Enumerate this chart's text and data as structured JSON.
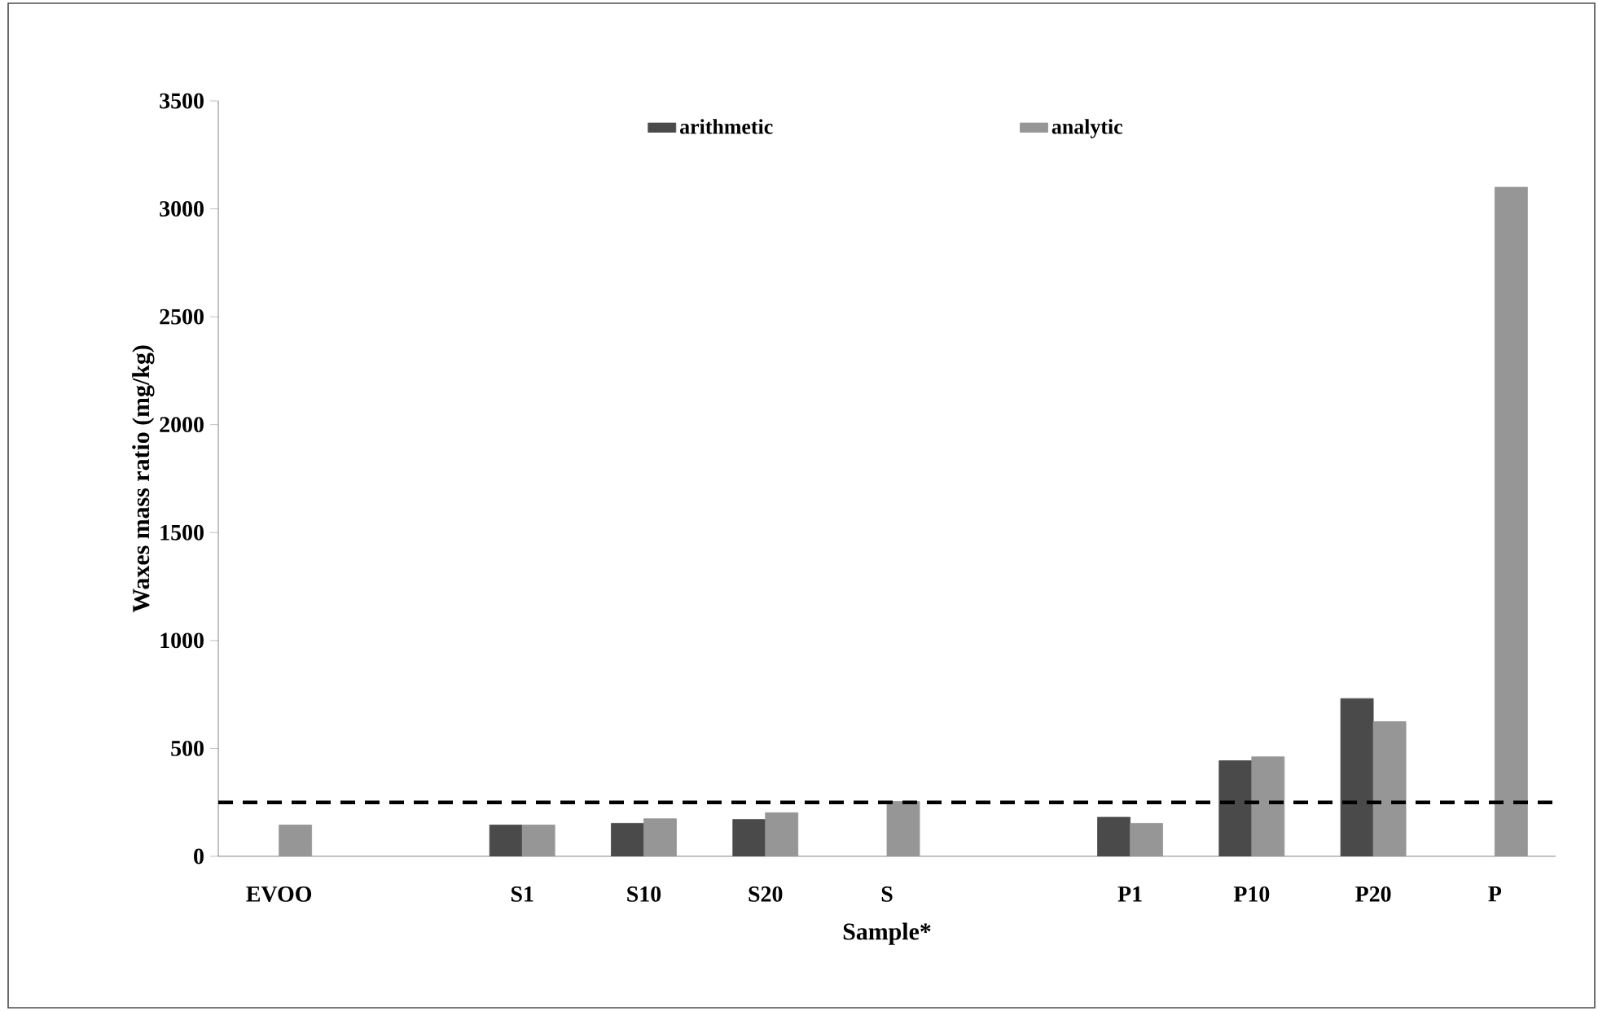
{
  "chart_data": {
    "type": "bar",
    "xlabel": "Sample*",
    "ylabel": "Waxes mass ratio (mg/kg)",
    "categories": [
      "EVOO",
      null,
      "S1",
      "S10",
      "S20",
      "S",
      null,
      "P1",
      "P10",
      "P20",
      "P"
    ],
    "series": [
      {
        "name": "arithmetic",
        "color": "#4a4a4a",
        "values": [
          null,
          null,
          145,
          153,
          171,
          null,
          null,
          181,
          443,
          731,
          null
        ]
      },
      {
        "name": "analytic",
        "color": "#969696",
        "values": [
          145,
          null,
          145,
          174,
          202,
          254,
          null,
          153,
          461,
          624,
          3100
        ]
      }
    ],
    "ylim": [
      0,
      3500
    ],
    "yticks": [
      0,
      500,
      1000,
      1500,
      2000,
      2500,
      3000,
      3500
    ],
    "ref_lines": [
      {
        "axis": "y",
        "value": 250,
        "color": "#000000",
        "line_style": "dashed"
      }
    ],
    "legend": "top",
    "grid": false
  }
}
